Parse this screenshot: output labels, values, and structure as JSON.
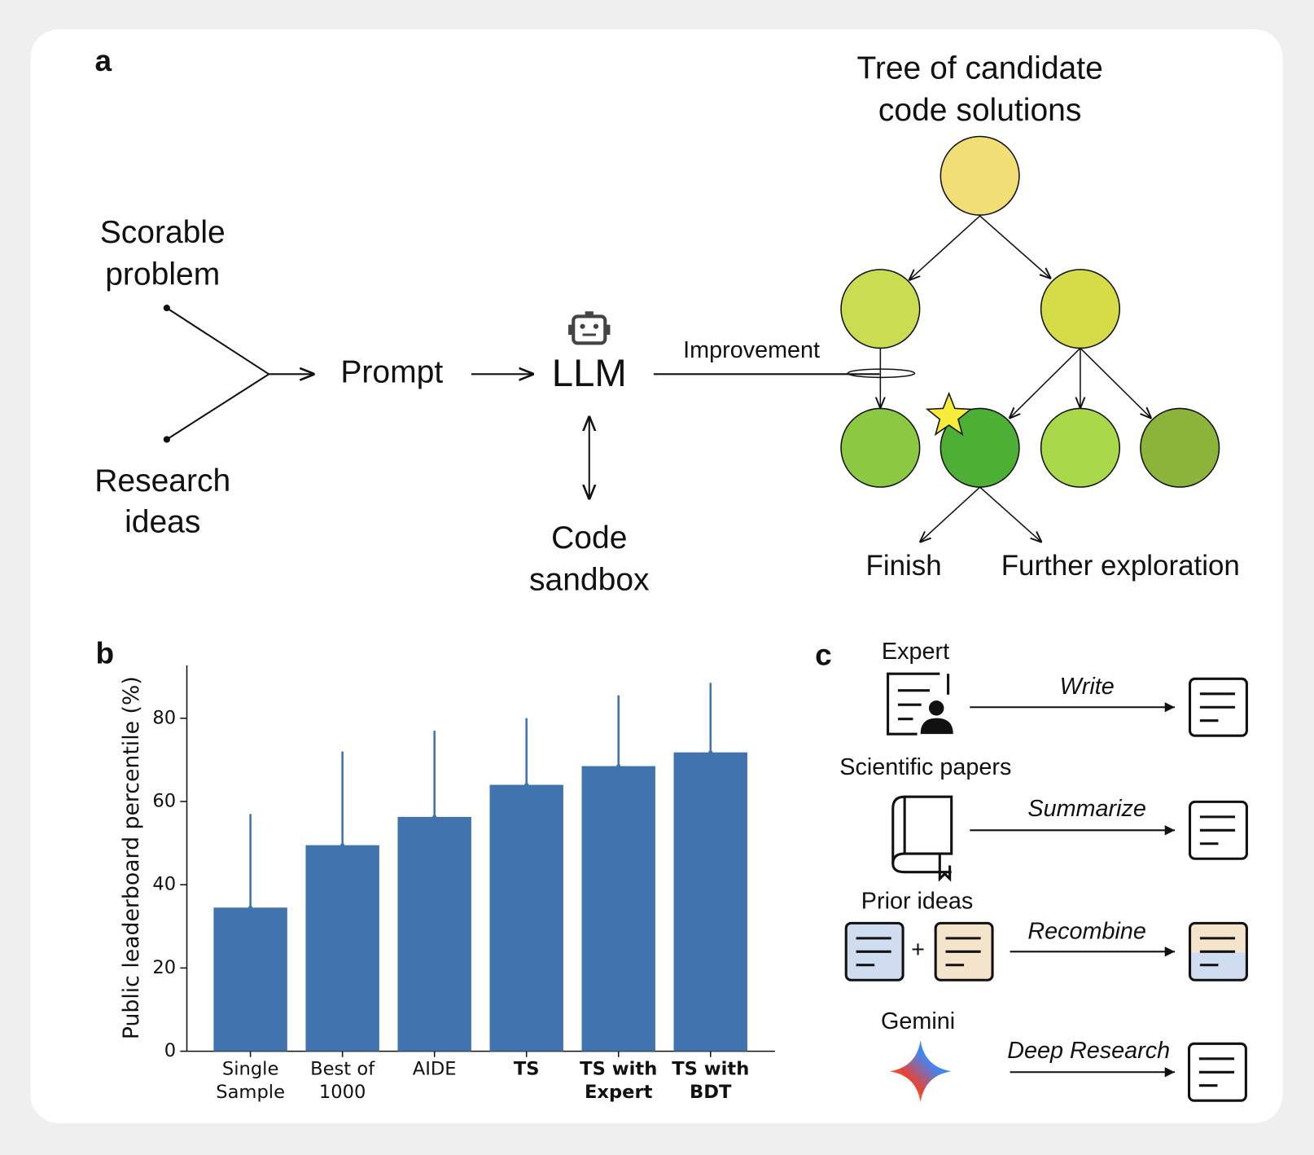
{
  "panel_a": {
    "label": "a",
    "tree_title": [
      "Tree of candidate",
      "code solutions"
    ],
    "inputs": [
      [
        "Scorable",
        "problem"
      ],
      [
        "Research",
        "ideas"
      ]
    ],
    "prompt": "Prompt",
    "llm": "LLM",
    "sandbox": [
      "Code",
      "sandbox"
    ],
    "improvement": "Improvement",
    "finish": "Finish",
    "further": "Further exploration"
  },
  "panel_b_label": "b",
  "chart_data": {
    "type": "bar",
    "ylabel": "Public leaderboard percentile (%)",
    "categories": [
      "Single Sample",
      "Best of 1000",
      "AIDE",
      "TS",
      "TS with Expert",
      "TS with BDT"
    ],
    "bold": [
      false,
      false,
      false,
      true,
      true,
      true
    ],
    "values": [
      34.5,
      49.5,
      56.3,
      64,
      68.5,
      71.8
    ],
    "errors": [
      22.5,
      22.5,
      20.7,
      16,
      17,
      16.7
    ],
    "color": "#4174ae",
    "ylim": [
      0,
      92.7
    ],
    "yticks": [
      0,
      20,
      40,
      60,
      80
    ],
    "grid": false
  },
  "panel_c": {
    "label": "c",
    "rows": [
      {
        "source": "Expert",
        "action": "Write"
      },
      {
        "source": "Scientific papers",
        "action": "Summarize"
      },
      {
        "source": "Prior ideas",
        "action": "Recombine"
      },
      {
        "source": "Gemini",
        "action": "Deep Research"
      }
    ]
  }
}
